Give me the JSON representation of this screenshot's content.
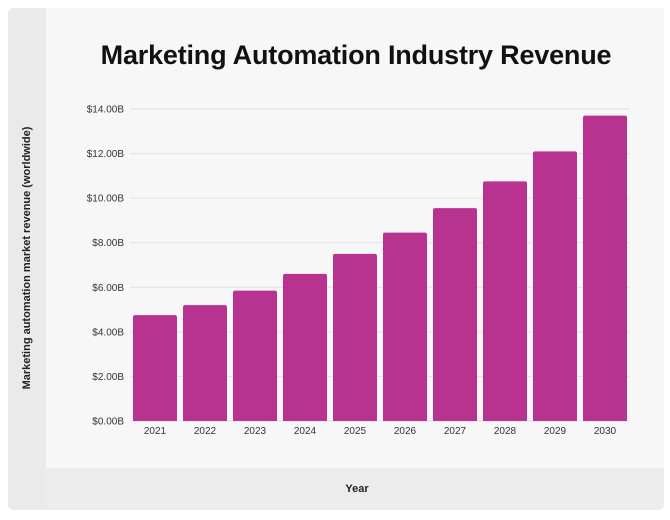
{
  "chart_data": {
    "type": "bar",
    "title": "Marketing Automation Industry Revenue",
    "xlabel": "Year",
    "ylabel": "Marketing automation market revenue (worldwide)",
    "categories": [
      "2021",
      "2022",
      "2023",
      "2024",
      "2025",
      "2026",
      "2027",
      "2028",
      "2029",
      "2030"
    ],
    "values": [
      4.75,
      5.2,
      5.85,
      6.6,
      7.5,
      8.45,
      9.55,
      10.75,
      12.1,
      13.7
    ],
    "ylim": [
      0,
      14
    ],
    "y_ticks": [
      0,
      2,
      4,
      6,
      8,
      10,
      12,
      14
    ],
    "y_tick_labels": [
      "$0.00B",
      "$2.00B",
      "$4.00B",
      "$6.00B",
      "$8.00B",
      "$10.00B",
      "$12.00B",
      "$14.00B"
    ],
    "grid": true,
    "legend": "none",
    "colors": {
      "bar": "#b8338f",
      "grid": "#e2e2e2",
      "axis_text": "#333333"
    }
  }
}
